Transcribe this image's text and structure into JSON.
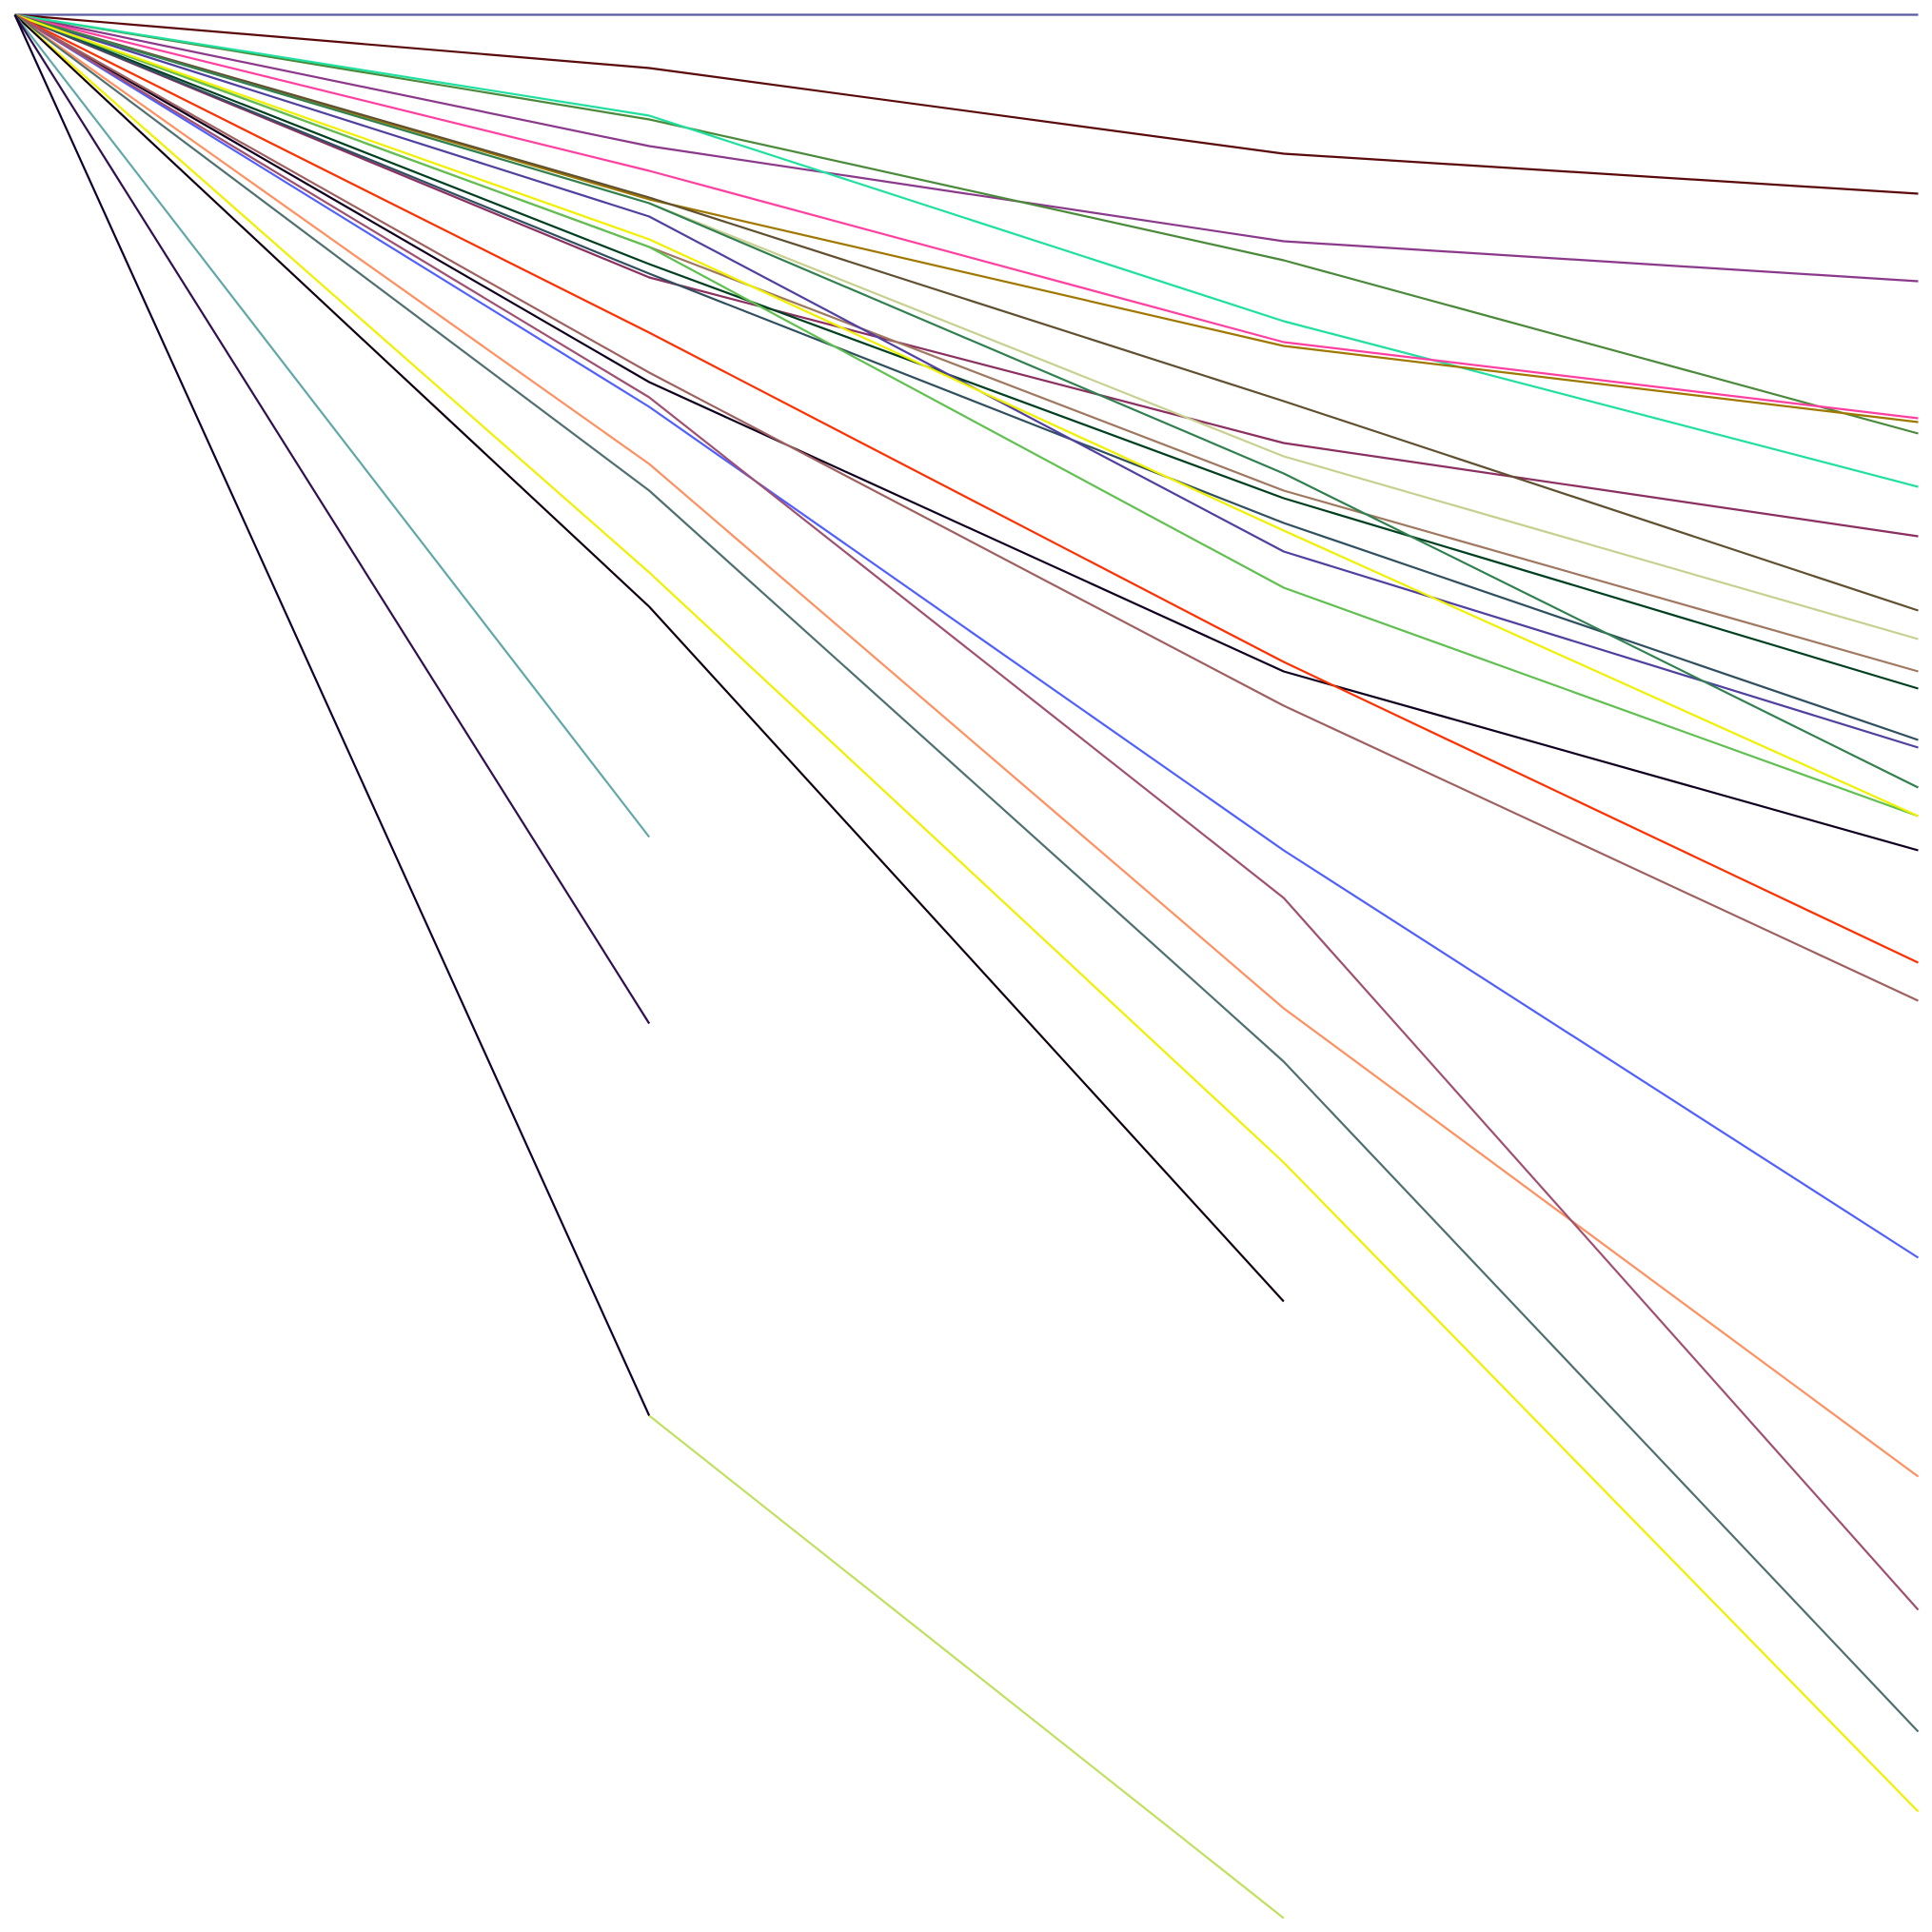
{
  "chart_data": {
    "type": "line",
    "title": "",
    "xlabel": "",
    "ylabel": "",
    "x": [
      0,
      1,
      2,
      3
    ],
    "xlim": [
      0,
      3
    ],
    "ylim": [
      -100,
      0
    ],
    "grid": false,
    "axes_visible": false,
    "legend": "none",
    "series": [
      {
        "color": "#5a5aa0",
        "x": [
          0,
          1,
          2,
          3
        ],
        "values": [
          0,
          0,
          0,
          0
        ]
      },
      {
        "color": "#5a0a0a",
        "x": [
          0,
          1,
          2,
          3
        ],
        "values": [
          0,
          -2.8,
          -7.3,
          -9.4
        ]
      },
      {
        "color": "#8b3a8b",
        "x": [
          0,
          1,
          2,
          3
        ],
        "values": [
          0,
          -6.9,
          -11.9,
          -14.0
        ]
      },
      {
        "color": "#4a8a3a",
        "x": [
          0,
          1,
          2,
          3
        ],
        "values": [
          0,
          -5.5,
          -12.9,
          -22.0
        ]
      },
      {
        "color": "#20e0a0",
        "x": [
          0,
          1,
          2,
          3
        ],
        "values": [
          0,
          -5.3,
          -16.1,
          -24.8
        ]
      },
      {
        "color": "#ff40a0",
        "x": [
          0,
          1,
          2,
          3
        ],
        "values": [
          0,
          -8.2,
          -17.2,
          -21.2
        ]
      },
      {
        "color": "#a07800",
        "x": [
          0,
          1,
          2,
          3
        ],
        "values": [
          0,
          -9.7,
          -17.4,
          -21.4
        ]
      },
      {
        "color": "#8b3060",
        "x": [
          0,
          1,
          2,
          3
        ],
        "values": [
          0,
          -13.8,
          -22.5,
          -27.4
        ]
      },
      {
        "color": "#605030",
        "x": [
          0,
          1,
          2,
          3
        ],
        "values": [
          0,
          -9.6,
          -20.3,
          -31.3
        ]
      },
      {
        "color": "#c8d090",
        "x": [
          0,
          1,
          2,
          3
        ],
        "values": [
          0,
          -9.9,
          -23.2,
          -32.8
        ]
      },
      {
        "color": "#a07860",
        "x": [
          0,
          1,
          2,
          3
        ],
        "values": [
          0,
          -12.2,
          -25.0,
          -34.5
        ]
      },
      {
        "color": "#004020",
        "x": [
          0,
          1,
          2,
          3
        ],
        "values": [
          0,
          -13.1,
          -25.4,
          -35.4
        ]
      },
      {
        "color": "#305060",
        "x": [
          0,
          1,
          2,
          3
        ],
        "values": [
          0,
          -13.6,
          -26.7,
          -38.1
        ]
      },
      {
        "color": "#5040a0",
        "x": [
          0,
          1,
          2,
          3
        ],
        "values": [
          0,
          -10.6,
          -28.2,
          -38.5
        ]
      },
      {
        "color": "#308050",
        "x": [
          0,
          1,
          2,
          3
        ],
        "values": [
          0,
          -9.9,
          -24.1,
          -40.6
        ]
      },
      {
        "color": "#60c050",
        "x": [
          0,
          1,
          2,
          3
        ],
        "values": [
          0,
          -12.2,
          -30.1,
          -42.1
        ]
      },
      {
        "color": "#f0f000",
        "x": [
          0,
          1,
          2,
          3
        ],
        "values": [
          0,
          -11.8,
          -27.1,
          -42.1
        ]
      },
      {
        "color": "#100020",
        "x": [
          0,
          1,
          2,
          3
        ],
        "values": [
          0,
          -19.3,
          -34.5,
          -43.9
        ]
      },
      {
        "color": "#ff3000",
        "x": [
          0,
          1,
          2,
          3
        ],
        "values": [
          0,
          -16.7,
          -34.0,
          -49.8
        ]
      },
      {
        "color": "#a06060",
        "x": [
          0,
          1,
          2,
          3
        ],
        "values": [
          0,
          -18.8,
          -36.3,
          -51.8
        ]
      },
      {
        "color": "#5060ff",
        "x": [
          0,
          1,
          2,
          3
        ],
        "values": [
          0,
          -20.6,
          -43.9,
          -65.3
        ]
      },
      {
        "color": "#ff9060",
        "x": [
          0,
          1,
          2,
          3
        ],
        "values": [
          0,
          -23.6,
          -52.2,
          -76.8
        ]
      },
      {
        "color": "#a05070",
        "x": [
          0,
          1,
          2,
          3
        ],
        "values": [
          0,
          -20.1,
          -46.4,
          -83.8
        ]
      },
      {
        "color": "#507070",
        "x": [
          0,
          1,
          2,
          3
        ],
        "values": [
          0,
          -25.0,
          -55.0,
          -90.2
        ]
      },
      {
        "color": "#f0f000",
        "x": [
          0,
          1,
          2,
          3
        ],
        "values": [
          0,
          -29.3,
          -60.3,
          -94.4
        ]
      },
      {
        "color": "#100010",
        "x": [
          0,
          1,
          2
        ],
        "values": [
          0,
          -31.1,
          -67.6
        ]
      },
      {
        "color": "#60a8a8",
        "x": [
          0,
          1
        ],
        "values": [
          0,
          -43.2
        ]
      },
      {
        "color": "#301050",
        "x": [
          0,
          1
        ],
        "values": [
          0,
          -53.0
        ]
      },
      {
        "color": "#100030",
        "x": [
          0,
          1
        ],
        "values": [
          0,
          -73.6
        ]
      },
      {
        "color": "#c0e060",
        "x": [
          1,
          2
        ],
        "values": [
          -73.6,
          -100
        ]
      }
    ]
  }
}
